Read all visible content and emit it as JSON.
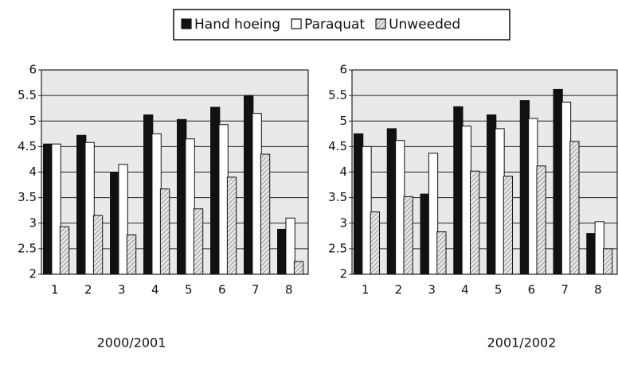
{
  "chart_data": [
    {
      "type": "bar",
      "title": "2000/2001",
      "categories": [
        "1",
        "2",
        "3",
        "4",
        "5",
        "6",
        "7",
        "8"
      ],
      "series": [
        {
          "name": "Hand hoeing",
          "color": "#111111",
          "values": [
            4.55,
            4.72,
            4.0,
            5.12,
            5.03,
            5.27,
            5.5,
            2.88
          ]
        },
        {
          "name": "Paraquat",
          "color": "#ffffff",
          "values": [
            4.55,
            4.58,
            4.15,
            4.75,
            4.65,
            4.93,
            5.15,
            3.1
          ]
        },
        {
          "name": "Unweeded",
          "color": "#9a9a9a",
          "values": [
            2.93,
            3.15,
            2.77,
            3.67,
            3.28,
            3.9,
            4.35,
            2.25
          ]
        }
      ],
      "ylim": [
        2,
        6
      ],
      "yticks": [
        2,
        2.5,
        3,
        3.5,
        4,
        4.5,
        5,
        5.5,
        6
      ],
      "grid": true
    },
    {
      "type": "bar",
      "title": "2001/2002",
      "categories": [
        "1",
        "2",
        "3",
        "4",
        "5",
        "6",
        "7",
        "8"
      ],
      "series": [
        {
          "name": "Hand hoeing",
          "color": "#111111",
          "values": [
            4.75,
            4.85,
            3.57,
            5.28,
            5.12,
            5.4,
            5.62,
            2.8
          ]
        },
        {
          "name": "Paraquat",
          "color": "#ffffff",
          "values": [
            4.5,
            4.62,
            4.37,
            4.9,
            4.85,
            5.05,
            5.37,
            3.03
          ]
        },
        {
          "name": "Unweeded",
          "color": "#9a9a9a",
          "values": [
            3.22,
            3.52,
            2.83,
            4.02,
            3.92,
            4.12,
            4.6,
            2.5
          ]
        }
      ],
      "ylim": [
        2,
        6
      ],
      "yticks": [
        2,
        2.5,
        3,
        3.5,
        4,
        4.5,
        5,
        5.5,
        6
      ],
      "grid": true
    }
  ]
}
